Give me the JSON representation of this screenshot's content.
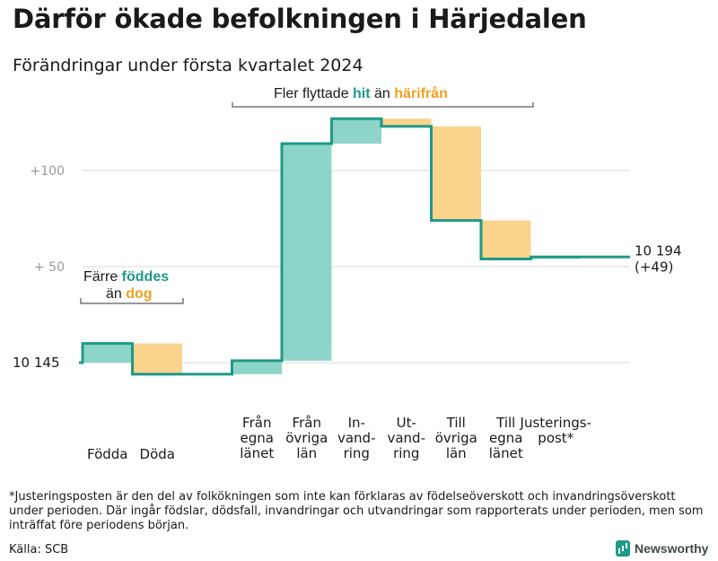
{
  "title": "Därför ökade befolkningen i Härjedalen",
  "subtitle": "Förändringar under första kvartalet 2024",
  "colors": {
    "increase": "#8dd5c8",
    "decrease": "#fad38c",
    "line": "#1f9a86",
    "grid": "#d9d9d9",
    "tick": "#999999",
    "teal_text": "#1f9a86",
    "orange_text": "#f0a020"
  },
  "chart_data": {
    "type": "waterfall",
    "start_value": 10145,
    "start_label": "10  145",
    "end_label": "10 194",
    "end_change_label": "(+49)",
    "steps": [
      {
        "label": "Födda",
        "change": 10
      },
      {
        "label": "Döda",
        "change": -16
      },
      {
        "label": "",
        "change": 0
      },
      {
        "label": "Från egna länet",
        "change": 7
      },
      {
        "label": "Från övriga län",
        "change": 113
      },
      {
        "label": "In-vand-ring",
        "change": 13
      },
      {
        "label": "Ut-vand-ring",
        "change": -4
      },
      {
        "label": "Till övriga län",
        "change": -49
      },
      {
        "label": "Till egna länet",
        "change": -20
      },
      {
        "label": "Justerings-post*",
        "change": 1
      }
    ],
    "category_lines": [
      [
        "Födda"
      ],
      [
        "Döda"
      ],
      [],
      [
        "Från",
        "egna",
        "länet"
      ],
      [
        "Från",
        "övriga",
        "län"
      ],
      [
        "In-",
        "vand-",
        "ring"
      ],
      [
        "Ut-",
        "vand-",
        "ring"
      ],
      [
        "Till",
        "övriga",
        "län"
      ],
      [
        "Till",
        "egna",
        "länet"
      ],
      [
        "Justerings-",
        "post*"
      ]
    ],
    "y_ticks": [
      {
        "value": 50,
        "label": "+  50"
      },
      {
        "value": 100,
        "label": "+100"
      }
    ],
    "y_range_relative": [
      -20,
      150
    ],
    "annotations": {
      "natural": {
        "part1": "Färre ",
        "highlight1": "föddes",
        "part2": "än ",
        "highlight2": "dog"
      },
      "migration": {
        "part1": "Fler flyttade ",
        "highlight1": "hit",
        "part2": " än ",
        "highlight2": "härifrån"
      }
    }
  },
  "footnote": "*Justeringsposten är den del av folkökningen som inte kan förklaras av födelseöverskott och invandringsöverskott under perioden. Där ingår födslar, dödsfall, invandringar och utvandringar som rapporterats under perioden, men som inträffat före periodens början.",
  "source": "Källa: SCB",
  "brand": "Newsworthy"
}
